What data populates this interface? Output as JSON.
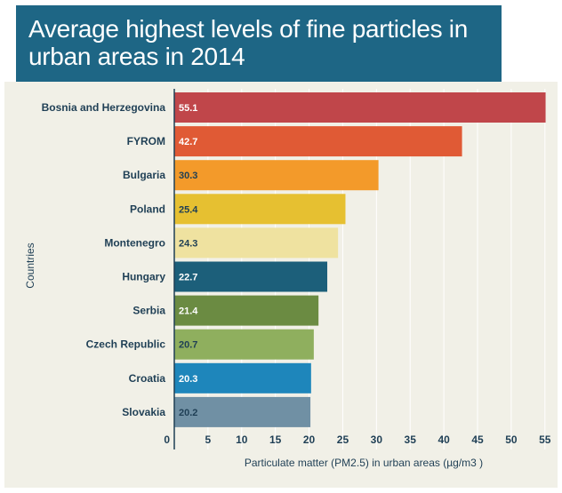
{
  "chart_data": {
    "type": "bar",
    "orientation": "horizontal",
    "title": "Average highest levels of fine particles in urban areas in 2014",
    "xlabel": "Particulate matter (PM2.5) in urban areas (µg/m3 )",
    "ylabel": "Countries",
    "xlim": [
      0,
      56
    ],
    "xticks": [
      0,
      5,
      10,
      15,
      20,
      25,
      30,
      35,
      40,
      45,
      50,
      55
    ],
    "grid": true,
    "categories": [
      "Bosnia and Herzegovina",
      "FYROM",
      "Bulgaria",
      "Poland",
      "Montenegro",
      "Hungary",
      "Serbia",
      "Czech Republic",
      "Croatia",
      "Slovakia"
    ],
    "values": [
      55.1,
      42.7,
      30.3,
      25.4,
      24.3,
      22.7,
      21.4,
      20.7,
      20.3,
      20.2
    ],
    "value_labels": [
      "55.1",
      "42.7",
      "30.3",
      "25.4",
      "24.3",
      "22.7",
      "21.4",
      "20.7",
      "20.3",
      "20.2"
    ],
    "bar_colors": [
      "#c0464a",
      "#e05a35",
      "#f39a2a",
      "#e6c031",
      "#efe2a0",
      "#1c5f7a",
      "#6b8b42",
      "#8faf5e",
      "#1e86bb",
      "#7090a4"
    ],
    "value_label_colors": [
      "#ffffff",
      "#ffffff",
      "#1f3f55",
      "#1f3f55",
      "#1f3f55",
      "#ffffff",
      "#ffffff",
      "#1f3f55",
      "#ffffff",
      "#1f3f55"
    ]
  },
  "colors": {
    "title_background": "#1e6685",
    "plot_background": "#f1f0e7",
    "text": "#1f3f55",
    "axis": "#1f3f55",
    "grid": "#ffffff"
  }
}
